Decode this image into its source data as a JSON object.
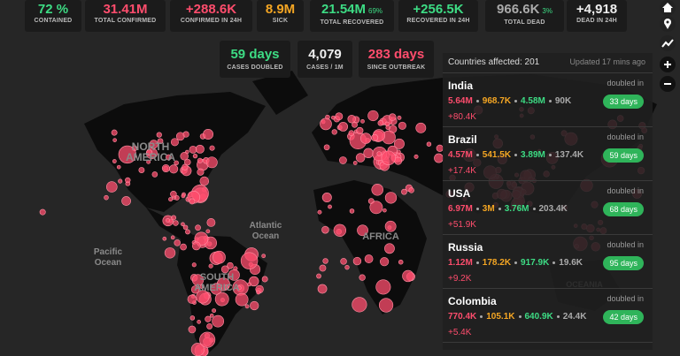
{
  "header_stats": [
    {
      "value": "72 %",
      "label": "CONTAINED"
    },
    {
      "value": "31.41M",
      "label": "TOTAL CONFIRMED"
    },
    {
      "value": "+288.6K",
      "label": "CONFIRMED IN 24H"
    },
    {
      "value": "8.9M",
      "label": "SICK"
    },
    {
      "value": "21.54M",
      "percent": "69%",
      "label": "TOTAL RECOVERED"
    },
    {
      "value": "+256.5K",
      "label": "RECOVERED IN 24H"
    },
    {
      "value": "966.6K",
      "percent": "3%",
      "label": "TOTAL DEAD"
    },
    {
      "value": "+4,918",
      "label": "DEAD IN 24H"
    }
  ],
  "summary_stats": [
    {
      "value": "59 days",
      "label": "CASES DOUBLED"
    },
    {
      "value": "4,079",
      "label": "CASES / 1M"
    },
    {
      "value": "283 days",
      "label": "SINCE OUTBREAK"
    }
  ],
  "panel": {
    "title": "Countries affected: 201",
    "updated": "Updated 17 mins ago",
    "countries": [
      {
        "name": "India",
        "confirmed": "5.64M",
        "sick": "968.7K",
        "recovered": "4.58M",
        "dead": "90K",
        "new": "+80.4K",
        "doubled_label": "doubled in",
        "doubled_days": "33 days"
      },
      {
        "name": "Brazil",
        "confirmed": "4.57M",
        "sick": "541.5K",
        "recovered": "3.89M",
        "dead": "137.4K",
        "new": "+17.4K",
        "doubled_label": "doubled in",
        "doubled_days": "59 days"
      },
      {
        "name": "USA",
        "confirmed": "6.97M",
        "sick": "3M",
        "recovered": "3.76M",
        "dead": "203.4K",
        "new": "+51.9K",
        "doubled_label": "doubled in",
        "doubled_days": "68 days"
      },
      {
        "name": "Russia",
        "confirmed": "1.12M",
        "sick": "178.2K",
        "recovered": "917.9K",
        "dead": "19.6K",
        "new": "+9.2K",
        "doubled_label": "doubled in",
        "doubled_days": "95 days"
      },
      {
        "name": "Colombia",
        "confirmed": "770.4K",
        "sick": "105.1K",
        "recovered": "640.9K",
        "dead": "24.4K",
        "new": "+5.4K",
        "doubled_label": "doubled in",
        "doubled_days": "42 days"
      }
    ]
  },
  "map_labels": [
    "NORTH AMERICA",
    "Atlantic Ocean",
    "Pacific Ocean",
    "AFRICA",
    "SOUTH AMERICA",
    "OCEANIA"
  ]
}
